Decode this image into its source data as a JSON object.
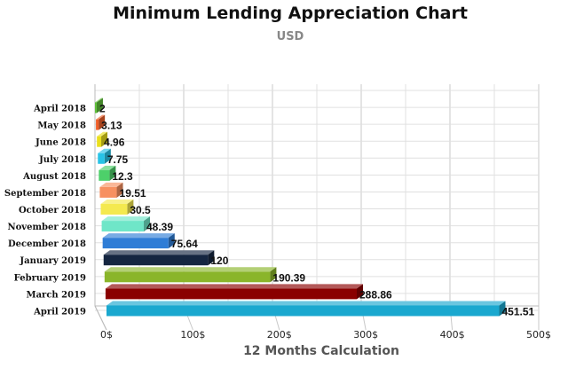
{
  "chart_data": {
    "type": "bar",
    "orientation": "horizontal",
    "title": "Minimum Lending Appreciation Chart",
    "subtitle": "USD",
    "xlabel": "12 Months Calculation",
    "ylabel": "",
    "xlim": [
      0,
      500
    ],
    "x_ticks": [
      "0$",
      "100$",
      "200$",
      "300$",
      "400$",
      "500$"
    ],
    "grid": true,
    "legend": "none",
    "categories": [
      "April 2018",
      "May 2018",
      "June 2018",
      "July 2018",
      "August 2018",
      "September 2018",
      "October 2018",
      "November 2018",
      "December 2018",
      "January 2019",
      "February 2019",
      "March 2019",
      "April 2019"
    ],
    "value_labels": [
      "2",
      "3.13",
      "4.96",
      "7.75",
      "12.3",
      "19.51",
      "30.5",
      "48.39",
      "75.64",
      "120",
      "190.39",
      "288.86",
      "451.51"
    ],
    "values": [
      2,
      3.13,
      4.96,
      7.75,
      12.3,
      19.51,
      30.5,
      48.39,
      75.64,
      120,
      190.39,
      288.86,
      451.51
    ],
    "colors": [
      "#5fc03a",
      "#f0602a",
      "#eadf1c",
      "#27c3e6",
      "#4dd06a",
      "#f79060",
      "#f4e94f",
      "#6fe6c8",
      "#2f7dd6",
      "#152641",
      "#8ab52a",
      "#8a0000",
      "#1aa8cf"
    ]
  }
}
